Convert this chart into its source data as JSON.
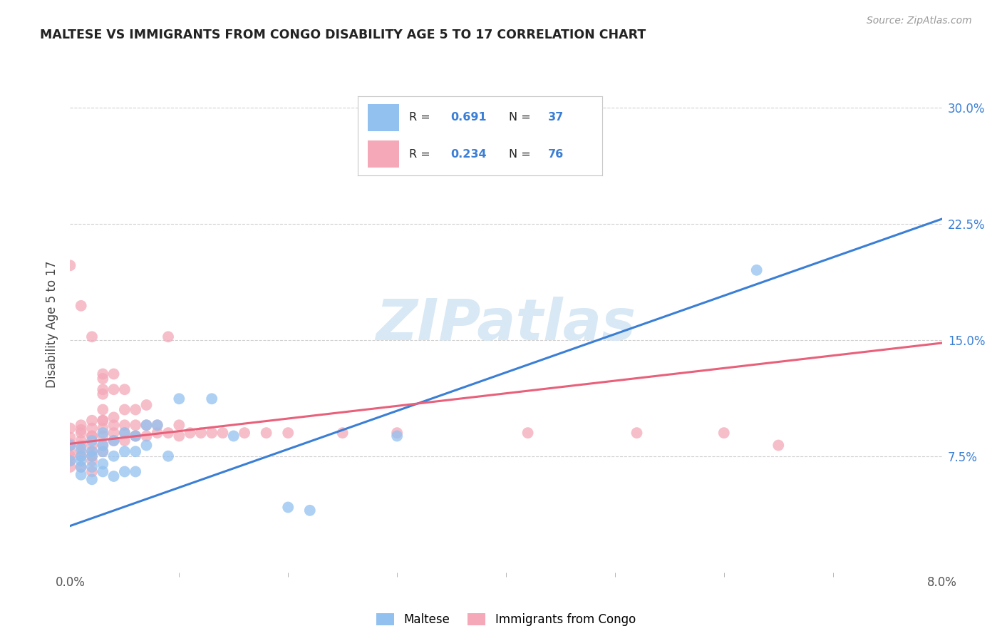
{
  "title": "MALTESE VS IMMIGRANTS FROM CONGO DISABILITY AGE 5 TO 17 CORRELATION CHART",
  "source": "Source: ZipAtlas.com",
  "ylabel": "Disability Age 5 to 17",
  "xlim": [
    0.0,
    0.08
  ],
  "ylim": [
    0.0,
    0.32
  ],
  "y_ticks": [
    0.075,
    0.15,
    0.225,
    0.3
  ],
  "y_tick_labels": [
    "7.5%",
    "15.0%",
    "22.5%",
    "30.0%"
  ],
  "legend1_label": "Maltese",
  "legend2_label": "Immigrants from Congo",
  "R1": 0.691,
  "N1": 37,
  "R2": 0.234,
  "N2": 76,
  "color_blue": "#92C1F0",
  "color_pink": "#F4A8B8",
  "line_blue": "#3A7FD5",
  "line_pink": "#E8607A",
  "text_blue": "#3A7FD5",
  "watermark_color": "#D8E8F5",
  "blue_line_x0": 0.0,
  "blue_line_y0": 0.03,
  "blue_line_x1": 0.08,
  "blue_line_y1": 0.228,
  "pink_line_x0": 0.0,
  "pink_line_y0": 0.083,
  "pink_line_x1": 0.08,
  "pink_line_y1": 0.148,
  "maltese_x": [
    0.0,
    0.0,
    0.001,
    0.001,
    0.001,
    0.001,
    0.001,
    0.002,
    0.002,
    0.002,
    0.002,
    0.002,
    0.003,
    0.003,
    0.003,
    0.003,
    0.003,
    0.004,
    0.004,
    0.004,
    0.005,
    0.005,
    0.005,
    0.006,
    0.006,
    0.006,
    0.007,
    0.007,
    0.008,
    0.009,
    0.01,
    0.013,
    0.015,
    0.02,
    0.022,
    0.03,
    0.063
  ],
  "maltese_y": [
    0.082,
    0.072,
    0.075,
    0.068,
    0.08,
    0.072,
    0.063,
    0.078,
    0.085,
    0.068,
    0.06,
    0.075,
    0.09,
    0.078,
    0.065,
    0.082,
    0.07,
    0.085,
    0.075,
    0.062,
    0.09,
    0.078,
    0.065,
    0.088,
    0.078,
    0.065,
    0.095,
    0.082,
    0.095,
    0.075,
    0.112,
    0.112,
    0.088,
    0.042,
    0.04,
    0.088,
    0.195
  ],
  "congo_x": [
    0.0,
    0.0,
    0.0,
    0.0,
    0.0,
    0.0,
    0.0,
    0.0,
    0.001,
    0.001,
    0.001,
    0.001,
    0.001,
    0.001,
    0.001,
    0.001,
    0.002,
    0.002,
    0.002,
    0.002,
    0.002,
    0.002,
    0.002,
    0.002,
    0.002,
    0.003,
    0.003,
    0.003,
    0.003,
    0.003,
    0.003,
    0.003,
    0.003,
    0.003,
    0.003,
    0.003,
    0.004,
    0.004,
    0.004,
    0.004,
    0.004,
    0.004,
    0.005,
    0.005,
    0.005,
    0.005,
    0.005,
    0.006,
    0.006,
    0.006,
    0.006,
    0.007,
    0.007,
    0.007,
    0.008,
    0.008,
    0.009,
    0.009,
    0.01,
    0.01,
    0.011,
    0.012,
    0.013,
    0.014,
    0.016,
    0.018,
    0.02,
    0.025,
    0.03,
    0.042,
    0.052,
    0.06,
    0.065,
    0.0,
    0.001,
    0.002
  ],
  "congo_y": [
    0.082,
    0.087,
    0.093,
    0.075,
    0.068,
    0.078,
    0.083,
    0.072,
    0.085,
    0.09,
    0.095,
    0.075,
    0.068,
    0.082,
    0.092,
    0.078,
    0.088,
    0.093,
    0.098,
    0.078,
    0.072,
    0.065,
    0.082,
    0.088,
    0.075,
    0.088,
    0.093,
    0.098,
    0.105,
    0.118,
    0.128,
    0.082,
    0.078,
    0.115,
    0.125,
    0.098,
    0.09,
    0.095,
    0.1,
    0.118,
    0.128,
    0.085,
    0.09,
    0.095,
    0.105,
    0.118,
    0.085,
    0.088,
    0.095,
    0.105,
    0.088,
    0.088,
    0.095,
    0.108,
    0.09,
    0.095,
    0.09,
    0.152,
    0.088,
    0.095,
    0.09,
    0.09,
    0.09,
    0.09,
    0.09,
    0.09,
    0.09,
    0.09,
    0.09,
    0.09,
    0.09,
    0.09,
    0.082,
    0.198,
    0.172,
    0.152
  ]
}
